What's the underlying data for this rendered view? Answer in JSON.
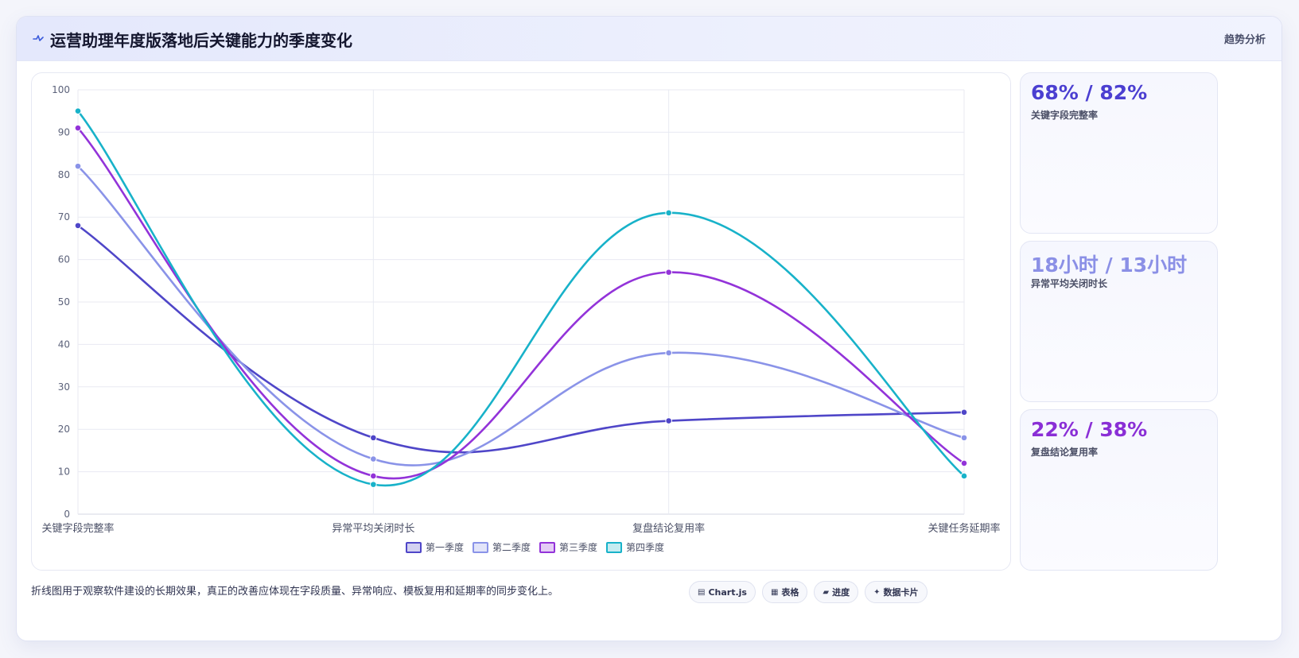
{
  "header": {
    "title": "运营助理年度版落地后关键能力的季度变化",
    "tag": "趋势分析",
    "icon": "pulse-icon"
  },
  "chart_data": {
    "type": "line",
    "categories": [
      "关键字段完整率",
      "异常平均关闭时长",
      "复盘结论复用率",
      "关键任务延期率"
    ],
    "ylim": [
      0,
      100
    ],
    "yticks": [
      0,
      10,
      20,
      30,
      40,
      50,
      60,
      70,
      80,
      90,
      100
    ],
    "grid": true,
    "legend_position": "bottom",
    "series": [
      {
        "name": "第一季度",
        "values": [
          68,
          18,
          22,
          24
        ],
        "color": "#4f46c8"
      },
      {
        "name": "第二季度",
        "values": [
          82,
          13,
          38,
          18
        ],
        "color": "#8a93e8"
      },
      {
        "name": "第三季度",
        "values": [
          91,
          9,
          57,
          12
        ],
        "color": "#9333d9"
      },
      {
        "name": "第四季度",
        "values": [
          95,
          7,
          71,
          9
        ],
        "color": "#18b2c9"
      }
    ]
  },
  "kpis": [
    {
      "value": "68% / 82%",
      "label": "关键字段完整率",
      "color": "#4b3fd1"
    },
    {
      "value": "18小时 / 13小时",
      "label": "异常平均关闭时长",
      "color": "#8b90e6"
    },
    {
      "value": "22% / 38%",
      "label": "复盘结论复用率",
      "color": "#8a2fd6"
    }
  ],
  "footnote": "折线图用于观察软件建设的长期效果，真正的改善应体现在字段质量、异常响应、模板复用和延期率的同步变化上。",
  "chips": [
    {
      "icon": "▤",
      "label": "Chart.js"
    },
    {
      "icon": "▦",
      "label": "表格"
    },
    {
      "icon": "▰",
      "label": "进度"
    },
    {
      "icon": "✦",
      "label": "数据卡片"
    }
  ]
}
